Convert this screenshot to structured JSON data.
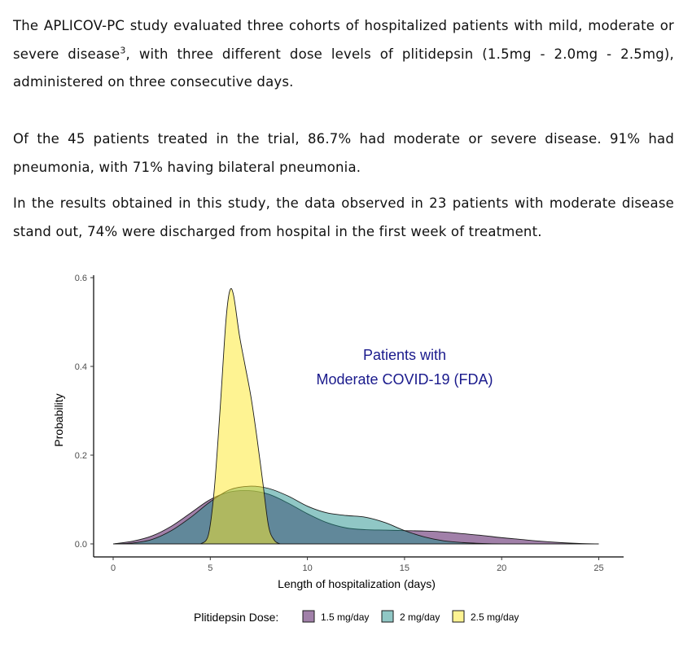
{
  "text": {
    "p1_a": "The APLICOV-PC study evaluated three cohorts of hospitalized patients with mild, moderate or severe disease",
    "p1_sup": "3",
    "p1_b": ", with three different dose levels of plitidepsin (1.5mg - 2.0mg - 2.5mg), administered on three consecutive days.",
    "p2": "Of the 45 patients treated in the trial, 86.7% had moderate or severe disease. 91% had pneumonia, with 71% having bilateral pneumonia.",
    "p3": "In the results obtained in this study, the data observed in 23 patients with moderate disease stand out, 74% were discharged from hospital in the first week of treatment."
  },
  "chart_data": {
    "type": "area",
    "title": "",
    "annotation": [
      "Patients with",
      "Moderate COVID-19 (FDA)"
    ],
    "xlabel": "Length of hospitalization (days)",
    "ylabel": "Probability",
    "xlim": [
      -1,
      26.2
    ],
    "ylim": [
      -0.02,
      0.6
    ],
    "xticks": [
      0,
      5,
      10,
      15,
      20,
      25
    ],
    "yticks": [
      0.0,
      0.2,
      0.4,
      0.6
    ],
    "ytick_labels": [
      "0.0",
      "0.2",
      "0.4",
      "0.6"
    ],
    "grid": false,
    "legend": {
      "title": "Plitidepsin Dose:",
      "position": "bottom",
      "entries": [
        "1.5 mg/day",
        "2 mg/day",
        "2.5 mg/day"
      ]
    },
    "series": [
      {
        "name": "1.5 mg/day",
        "color": "#440154",
        "opacity": 0.5,
        "x": [
          0,
          1,
          2,
          3,
          4,
          5,
          6,
          7,
          8,
          9,
          10,
          11,
          12,
          13,
          14,
          15,
          16,
          17,
          18,
          19,
          20,
          21,
          22,
          23,
          24,
          25
        ],
        "y": [
          0.0,
          0.006,
          0.018,
          0.04,
          0.07,
          0.1,
          0.117,
          0.12,
          0.112,
          0.092,
          0.068,
          0.048,
          0.036,
          0.032,
          0.031,
          0.03,
          0.029,
          0.027,
          0.023,
          0.019,
          0.014,
          0.01,
          0.006,
          0.003,
          0.001,
          0.0
        ]
      },
      {
        "name": "2 mg/day",
        "color": "#21908C",
        "opacity": 0.5,
        "x": [
          0,
          1,
          2,
          3,
          4,
          5,
          6,
          7,
          8,
          9,
          10,
          11,
          12,
          13,
          14,
          15,
          16,
          17,
          18,
          19,
          20,
          21,
          22,
          23,
          24,
          25
        ],
        "y": [
          0.0,
          0.002,
          0.01,
          0.03,
          0.06,
          0.095,
          0.122,
          0.13,
          0.125,
          0.108,
          0.085,
          0.07,
          0.064,
          0.06,
          0.048,
          0.03,
          0.016,
          0.007,
          0.003,
          0.001,
          0.0,
          0.0,
          0.0,
          0.0,
          0.0,
          0.0
        ]
      },
      {
        "name": "2.5 mg/day",
        "color": "#FDE725",
        "opacity": 0.5,
        "x": [
          4.5,
          4.9,
          5.2,
          5.5,
          5.8,
          6.0,
          6.2,
          6.5,
          6.8,
          7.1,
          7.4,
          7.7,
          8.0,
          8.3,
          8.6
        ],
        "y": [
          0.0,
          0.02,
          0.12,
          0.3,
          0.5,
          0.57,
          0.56,
          0.47,
          0.4,
          0.33,
          0.24,
          0.14,
          0.04,
          0.008,
          0.0
        ]
      }
    ]
  }
}
